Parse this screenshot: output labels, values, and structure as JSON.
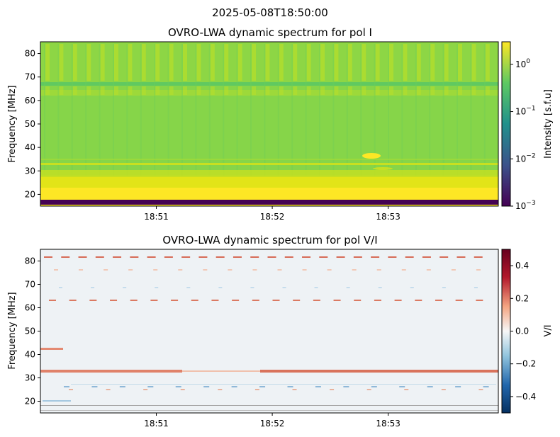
{
  "figure": {
    "suptitle": "2025-05-08T18:50:00"
  },
  "chart_data": [
    {
      "type": "heatmap",
      "title": "OVRO-LWA dynamic spectrum for pol I",
      "ylabel": "Frequency [MHz]",
      "xlabel": "",
      "x_tick_labels": [
        "18:51",
        "18:52",
        "18:53"
      ],
      "x_tick_values_min": [
        1,
        2,
        3
      ],
      "x_range_min": [
        0,
        3.95
      ],
      "y_ticks": [
        20,
        30,
        40,
        50,
        60,
        70,
        80
      ],
      "y_tick_labels": [
        "20",
        "30",
        "40",
        "50",
        "60",
        "70",
        "80"
      ],
      "ylim": [
        15,
        85
      ],
      "colorbar": {
        "label": "Intensity [s.f.u]",
        "scale": "log",
        "range": [
          0.001,
          3
        ],
        "ticks": [
          0.001,
          0.01,
          0.1,
          1
        ],
        "tick_labels": [
          "10",
          "10",
          "10",
          "10"
        ],
        "tick_exponents": [
          "−3",
          "−2",
          "−1",
          "0"
        ],
        "colormap": "viridis",
        "colors": [
          "#440154",
          "#3b528b",
          "#21918c",
          "#5ec962",
          "#fde725"
        ]
      },
      "features": [
        {
          "desc": "low freq band saturated",
          "freq_range": [
            15,
            17
          ],
          "value": 0.001
        },
        {
          "desc": "bright band",
          "freq_range": [
            17,
            27
          ],
          "value": 3
        },
        {
          "desc": "emission blob",
          "time_min": 2.88,
          "freq": 36,
          "value": 3
        }
      ]
    },
    {
      "type": "heatmap",
      "title": "OVRO-LWA dynamic spectrum for pol V/I",
      "ylabel": "Frequency [MHz]",
      "xlabel": "",
      "x_tick_labels": [
        "18:51",
        "18:52",
        "18:53"
      ],
      "x_tick_values_min": [
        1,
        2,
        3
      ],
      "x_range_min": [
        0,
        3.95
      ],
      "y_ticks": [
        20,
        30,
        40,
        50,
        60,
        70,
        80
      ],
      "y_tick_labels": [
        "20",
        "30",
        "40",
        "50",
        "60",
        "70",
        "80"
      ],
      "ylim": [
        15,
        85
      ],
      "colorbar": {
        "label": "V/I",
        "scale": "linear",
        "range": [
          -0.5,
          0.5
        ],
        "ticks": [
          0.4,
          0.2,
          0.0,
          -0.2,
          -0.4
        ],
        "tick_labels": [
          "0.4",
          "0.2",
          "0.0",
          "−0.2",
          "−0.4"
        ],
        "colormap": "RdBu_r",
        "colors": [
          "#053061",
          "#2166ac",
          "#92c5de",
          "#f7f7f7",
          "#f4a582",
          "#b2182b",
          "#67001f"
        ]
      },
      "features": [
        {
          "desc": "red band",
          "freq": 32.8,
          "value": 0.3
        },
        {
          "desc": "red dashes",
          "freq": 82,
          "value": 0.3
        },
        {
          "desc": "red dashes",
          "freq": 63,
          "value": 0.25
        }
      ]
    }
  ]
}
